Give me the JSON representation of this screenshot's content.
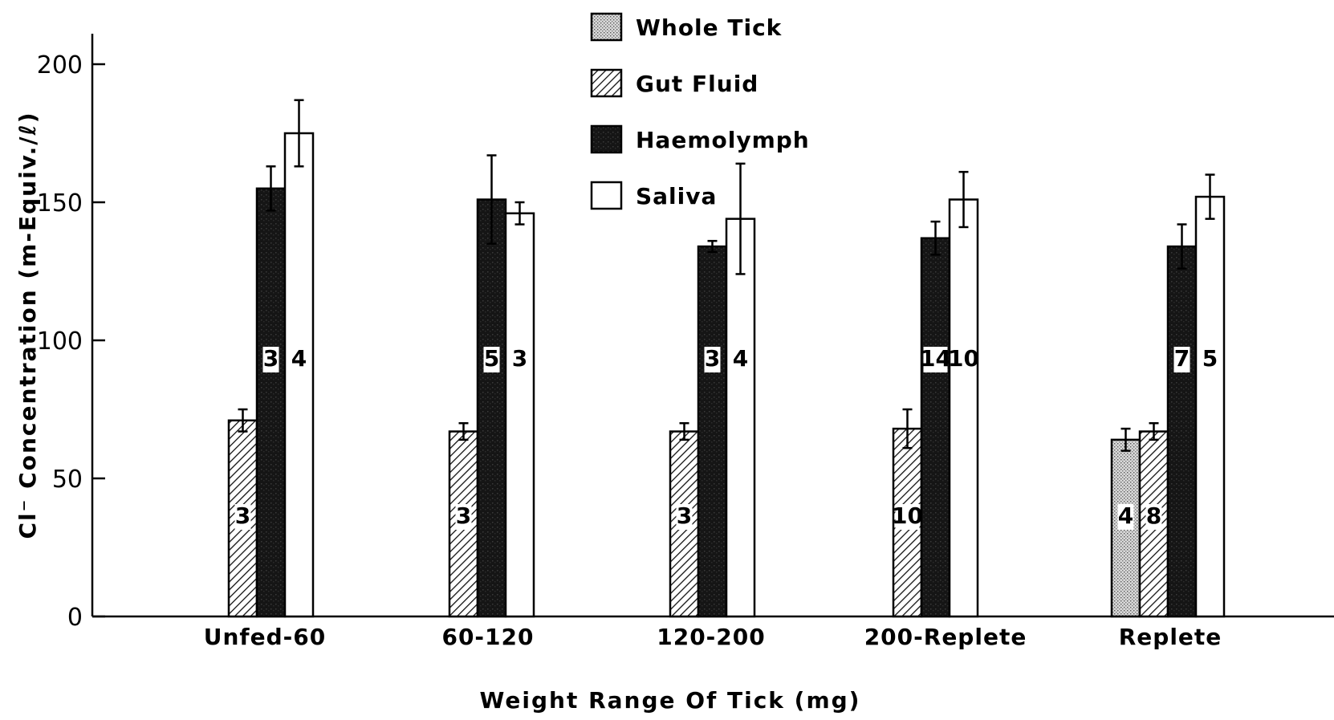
{
  "chart_data": {
    "type": "bar",
    "title": "",
    "xlabel": "Weight Range Of Tick (mg)",
    "ylabel": "Cl⁻ Concentration (m-Equiv./ℓ)",
    "ylim": [
      0,
      210
    ],
    "yticks": [
      0,
      50,
      100,
      150,
      200
    ],
    "categories": [
      "Unfed-60",
      "60-120",
      "120-200",
      "200-Replete",
      "Replete"
    ],
    "legend_position": "top-center",
    "series": [
      {
        "name": "Whole Tick",
        "pattern": "stipple",
        "color": "#bdbdbd",
        "values": [
          null,
          null,
          null,
          null,
          64
        ],
        "errors": [
          null,
          null,
          null,
          null,
          4
        ],
        "n": [
          "",
          "",
          "",
          "",
          "4"
        ]
      },
      {
        "name": "Gut Fluid",
        "pattern": "hatch",
        "color": "#ffffff",
        "values": [
          71,
          67,
          67,
          68,
          67
        ],
        "errors": [
          4,
          3,
          3,
          7,
          3
        ],
        "n": [
          "3",
          "3",
          "3",
          "10",
          "8"
        ]
      },
      {
        "name": "Haemolymph",
        "pattern": "solid",
        "color": "#1a1a1a",
        "values": [
          155,
          151,
          134,
          137,
          134
        ],
        "errors": [
          8,
          16,
          2,
          6,
          8
        ],
        "n": [
          "3",
          "5",
          "3",
          "14",
          "7"
        ]
      },
      {
        "name": "Saliva",
        "pattern": "open",
        "color": "#ffffff",
        "values": [
          175,
          146,
          144,
          151,
          152
        ],
        "errors": [
          12,
          4,
          20,
          10,
          8
        ],
        "n": [
          "4",
          "3",
          "4",
          "10",
          "5"
        ]
      }
    ]
  }
}
